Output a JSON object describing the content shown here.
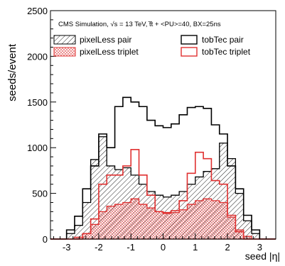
{
  "chart_data": {
    "type": "area",
    "style": "step-histogram",
    "title": "CMS Simulation,  √s = 13 TeV,  t̅t + <PU>=40, BX=25ns",
    "xlabel": "seed |η|",
    "ylabel": "seeds/event",
    "xlim": [
      -3.5,
      3.5
    ],
    "ylim": [
      0,
      2500
    ],
    "xticks": [
      -3,
      -2,
      -1,
      0,
      1,
      2,
      3
    ],
    "yticks": [
      0,
      500,
      1000,
      1500,
      2000,
      2500
    ],
    "legend_placement": "top",
    "bin_edges": [
      -3.5,
      -3.25,
      -3.0,
      -2.75,
      -2.5,
      -2.25,
      -2.0,
      -1.75,
      -1.5,
      -1.25,
      -1.0,
      -0.75,
      -0.5,
      -0.25,
      0.0,
      0.25,
      0.5,
      0.75,
      1.0,
      1.25,
      1.5,
      1.75,
      2.0,
      2.25,
      2.5,
      2.75,
      3.0,
      3.25,
      3.5
    ],
    "series": [
      {
        "name": "tobTec pair",
        "color": "#000000",
        "fill": "none",
        "values": [
          0,
          0,
          100,
          250,
          550,
          800,
          1150,
          1000,
          1450,
          1550,
          1500,
          1450,
          1300,
          1240,
          1220,
          1260,
          1360,
          1440,
          1450,
          1430,
          1250,
          1150,
          800,
          550,
          260,
          100,
          0,
          0
        ]
      },
      {
        "name": "pixelLess pair",
        "color": "#000000",
        "fill": "hatch-black",
        "values": [
          0,
          0,
          60,
          150,
          400,
          870,
          1120,
          800,
          760,
          780,
          700,
          600,
          520,
          480,
          460,
          480,
          520,
          600,
          680,
          740,
          770,
          1050,
          880,
          500,
          200,
          60,
          0,
          0
        ]
      },
      {
        "name": "tobTec triplet",
        "color": "#e03030",
        "fill": "none",
        "values": [
          0,
          0,
          0,
          0,
          60,
          220,
          600,
          700,
          700,
          800,
          980,
          700,
          480,
          300,
          290,
          310,
          420,
          720,
          950,
          880,
          640,
          600,
          260,
          80,
          0,
          0,
          0,
          0
        ]
      },
      {
        "name": "pixelLess triplet",
        "color": "#e03030",
        "fill": "hatch-red",
        "values": [
          0,
          0,
          0,
          20,
          60,
          160,
          300,
          360,
          380,
          400,
          440,
          380,
          340,
          300,
          280,
          290,
          320,
          380,
          420,
          440,
          420,
          400,
          240,
          100,
          30,
          0,
          0,
          0
        ]
      }
    ]
  }
}
